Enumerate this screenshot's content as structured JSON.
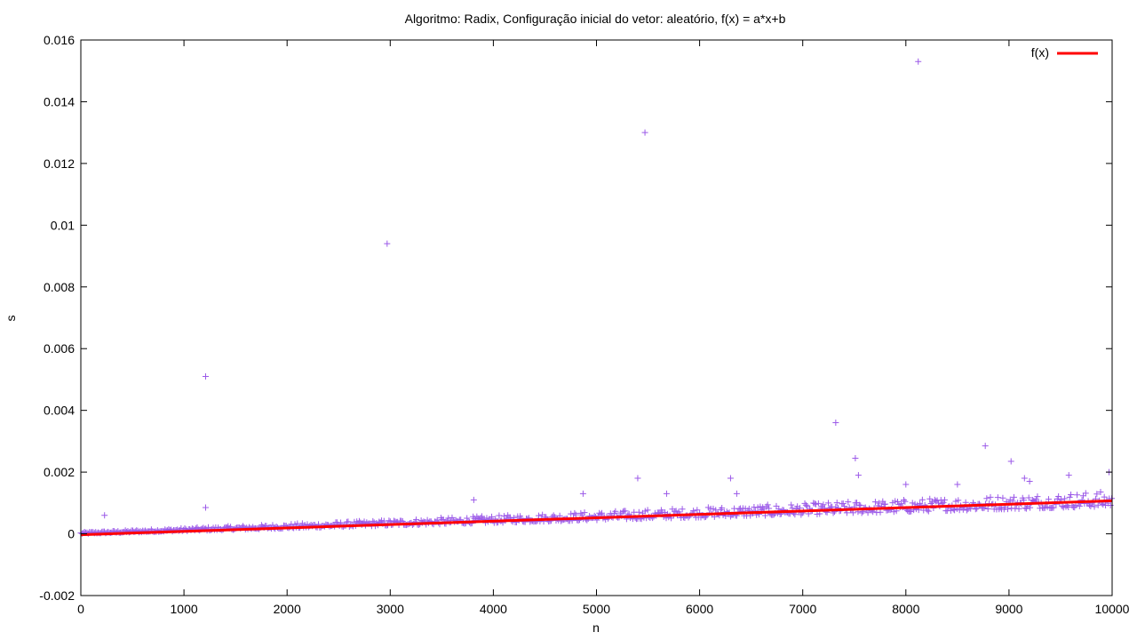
{
  "chart_data": {
    "type": "scatter",
    "title": "Algoritmo: Radix, Configuração inicial do vetor: aleatório, f(x) = a*x+b",
    "xlabel": "n",
    "ylabel": "s",
    "xlim": [
      0,
      10000
    ],
    "ylim": [
      -0.002,
      0.016
    ],
    "x_ticks": [
      0,
      1000,
      2000,
      3000,
      4000,
      5000,
      6000,
      7000,
      8000,
      9000,
      10000
    ],
    "x_tick_labels": [
      "0",
      "1000",
      "2000",
      "3000",
      "4000",
      "5000",
      "6000",
      "7000",
      "8000",
      "9000",
      "10000"
    ],
    "y_ticks": [
      -0.002,
      0,
      0.002,
      0.004,
      0.006,
      0.008,
      0.01,
      0.012,
      0.014,
      0.016
    ],
    "y_tick_labels": [
      "-0.002",
      "0",
      "0.002",
      "0.004",
      "0.006",
      "0.008",
      "0.01",
      "0.012",
      "0.014",
      "0.016"
    ],
    "grid": false,
    "legend_position": "top-right",
    "colors": {
      "points": "#9b59e8",
      "fit": "#ff0000"
    },
    "series": [
      {
        "kind": "points",
        "description": "measured times: dense band roughly linear from ~0 at n=0 to ~0.001 at n=10000, plus sparse outliers",
        "band": {
          "x_start": 0,
          "x_end": 10000,
          "y_start": 0.0,
          "y_end": 0.00105,
          "spread_low": 0.0002,
          "spread_high": 0.0004
        },
        "points": [
          [
            230,
            0.0006
          ],
          [
            1210,
            0.0051
          ],
          [
            1210,
            0.00085
          ],
          [
            2970,
            0.0094
          ],
          [
            5470,
            0.013
          ],
          [
            8120,
            0.0153
          ],
          [
            7320,
            0.0036
          ],
          [
            8770,
            0.00285
          ],
          [
            9020,
            0.00235
          ],
          [
            7510,
            0.00245
          ],
          [
            5400,
            0.0018
          ],
          [
            6300,
            0.0018
          ],
          [
            7540,
            0.0019
          ],
          [
            9150,
            0.0018
          ],
          [
            9580,
            0.0019
          ],
          [
            9970,
            0.002
          ],
          [
            3810,
            0.0011
          ],
          [
            4870,
            0.0013
          ],
          [
            5680,
            0.0013
          ],
          [
            6360,
            0.0013
          ],
          [
            8000,
            0.0016
          ],
          [
            8500,
            0.0016
          ],
          [
            9200,
            0.0017
          ]
        ]
      },
      {
        "kind": "line",
        "name": "f(x)",
        "x": [
          0,
          10000
        ],
        "y": [
          -3e-05,
          0.00107
        ]
      }
    ]
  }
}
